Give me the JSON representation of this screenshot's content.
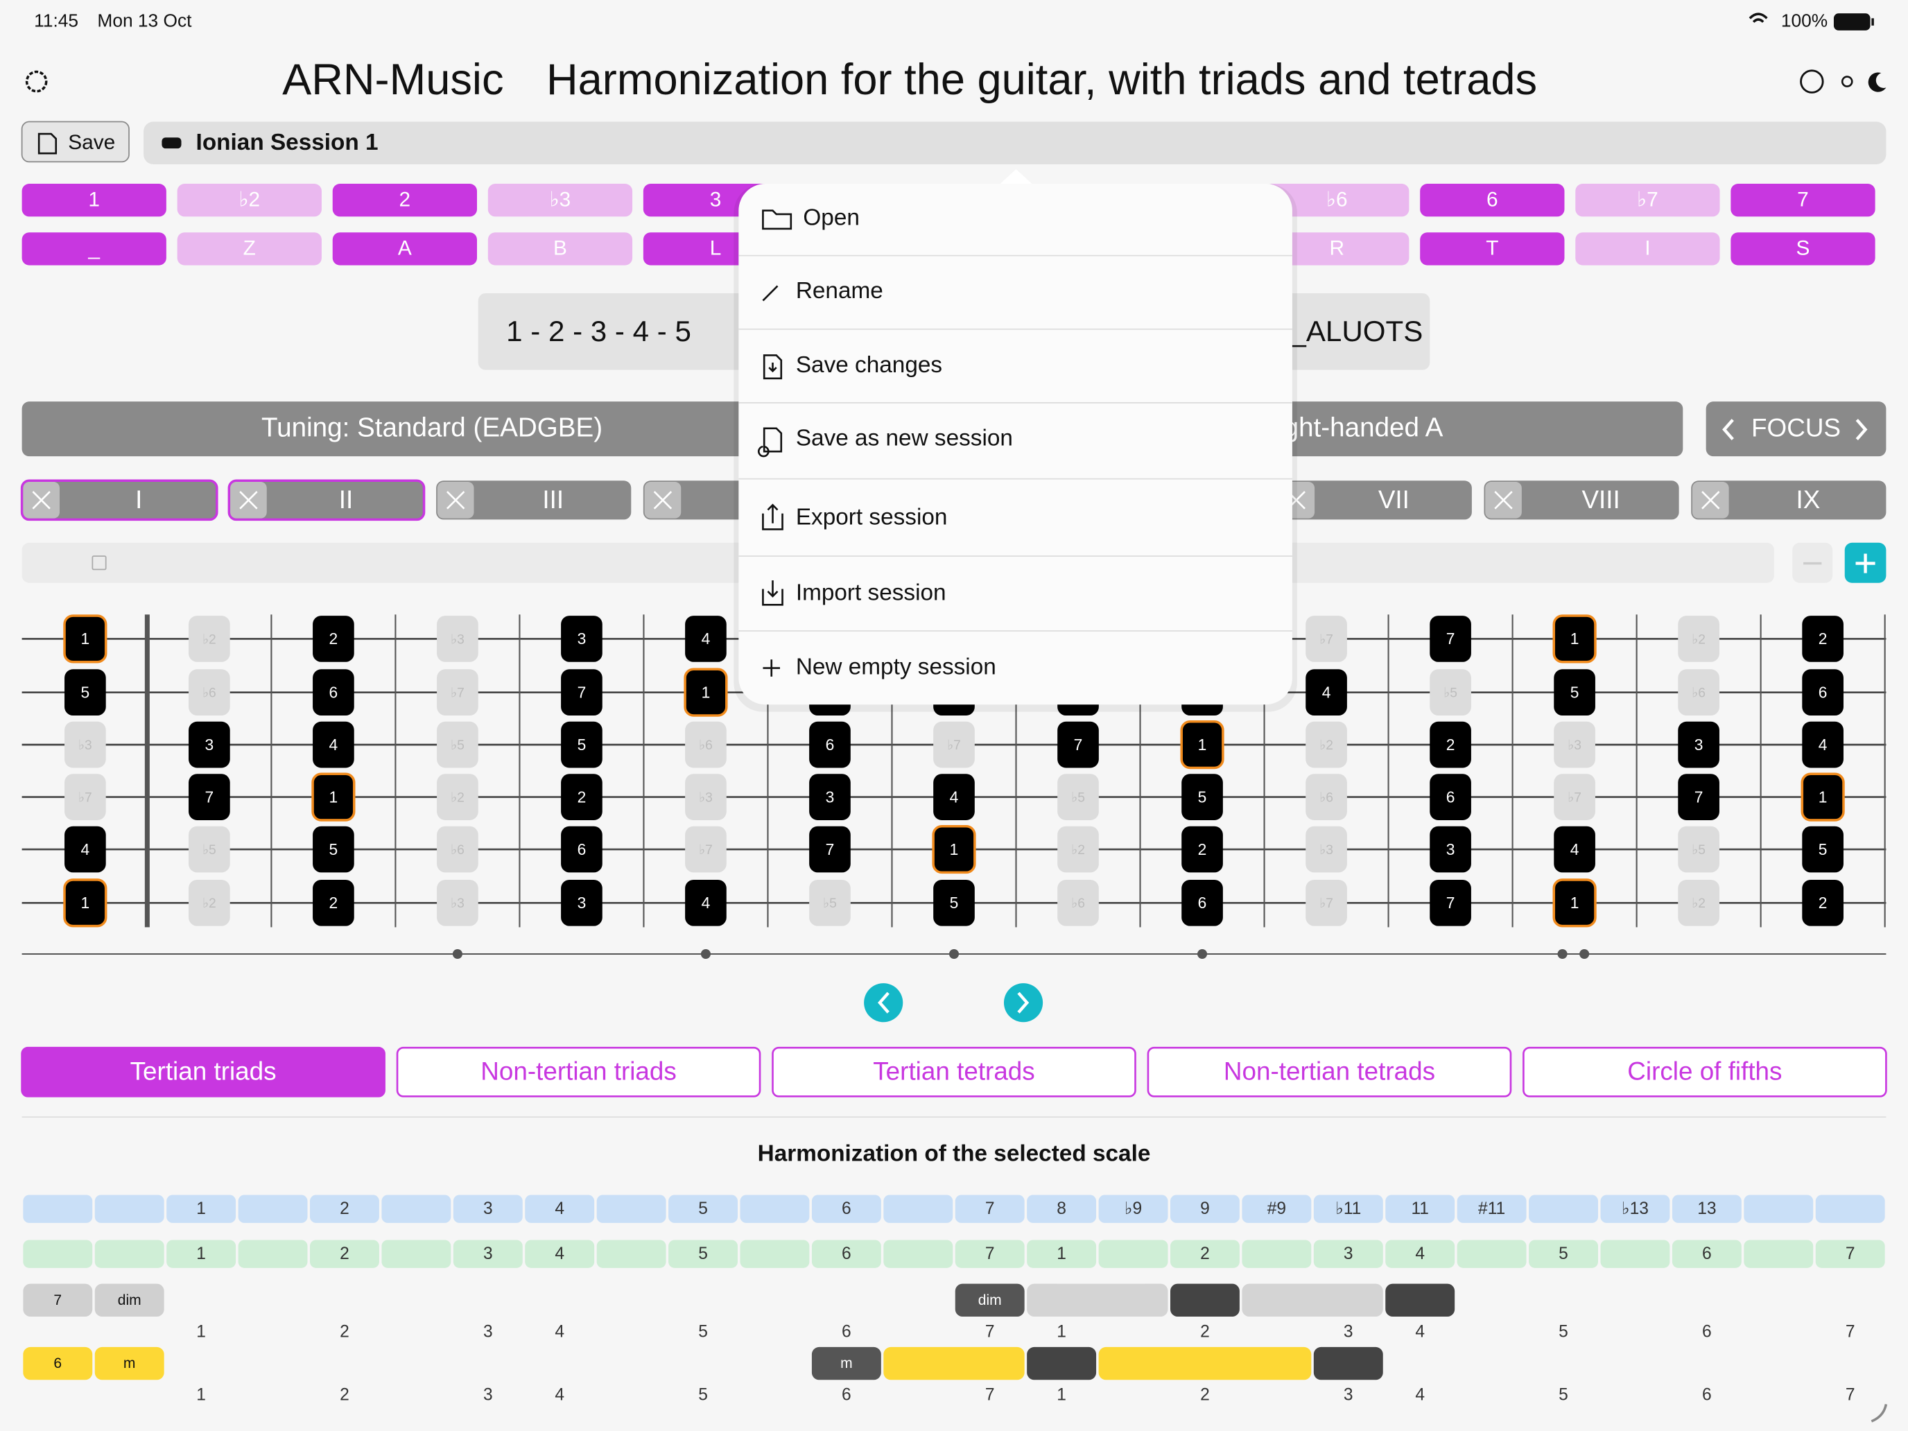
{
  "status": {
    "time": "11:45",
    "date": "Mon 13 Oct",
    "battery": "100%"
  },
  "header": {
    "app": "ARN-Music",
    "title": "Harmonization for the guitar, with triads and tetrads"
  },
  "toolbar": {
    "save": "Save",
    "session": "Ionian Session 1"
  },
  "degrees": {
    "names": [
      "1",
      "♭2",
      "2",
      "♭3",
      "3",
      null,
      null,
      null,
      "♭6",
      "6",
      "♭7",
      "7"
    ],
    "letters": [
      "_",
      "Z",
      "A",
      "B",
      "L",
      null,
      null,
      null,
      "R",
      "T",
      "I",
      "S"
    ]
  },
  "formula": {
    "degrees": "1 - 2 - 3 - 4 - 5",
    "letters": "_ALUOTS"
  },
  "tuning": {
    "label": "Tuning: Standard (EADGBE)",
    "hand": "ght-handed A",
    "focus": "FOCUS"
  },
  "positions": [
    "I",
    "II",
    "III",
    null,
    null,
    null,
    "VII",
    "VIII",
    "IX"
  ],
  "menu": {
    "items": [
      "Open",
      "Rename",
      "Save changes",
      "Save as new session",
      "Export session",
      "Import session",
      "New empty session"
    ]
  },
  "fretboard": {
    "strings": [
      [
        "1",
        "♭2",
        "2",
        "♭3",
        "3",
        "4",
        null,
        null,
        null,
        null,
        "♭7",
        "7",
        "1",
        "♭2",
        "2"
      ],
      [
        "5",
        "♭6",
        "6",
        "♭7",
        "7",
        "1",
        null,
        null,
        null,
        null,
        "4",
        "♭5",
        "5",
        "♭6",
        "6"
      ],
      [
        "♭3",
        "3",
        "4",
        "♭5",
        "5",
        "♭6",
        "6",
        "♭7",
        "7",
        "1",
        "♭2",
        "2",
        "♭3",
        "3",
        "4"
      ],
      [
        "♭7",
        "7",
        "1",
        "♭2",
        "2",
        "♭3",
        "3",
        "4",
        "♭5",
        "5",
        "♭6",
        "6",
        "♭7",
        "7",
        "1"
      ],
      [
        "4",
        "♭5",
        "5",
        "♭6",
        "6",
        "♭7",
        "7",
        "1",
        "♭2",
        "2",
        "♭3",
        "3",
        "4",
        "♭5",
        "5"
      ],
      [
        "1",
        "♭2",
        "2",
        "♭3",
        "3",
        "4",
        "♭5",
        "5",
        "♭6",
        "6",
        "♭7",
        "7",
        "1",
        "♭2",
        "2"
      ]
    ]
  },
  "tabs": [
    "Tertian triads",
    "Non-tertian triads",
    "Tertian tetrads",
    "Non-tertian tetrads",
    "Circle of fifths"
  ],
  "harmonization": {
    "title": "Harmonization of the selected scale",
    "intervals": [
      null,
      null,
      "1",
      null,
      "2",
      null,
      "3",
      "4",
      null,
      "5",
      null,
      "6",
      null,
      "7",
      "8",
      "♭9",
      "9",
      "#9",
      "♭11",
      "11",
      "#11",
      null,
      "♭13",
      "13",
      null,
      null
    ],
    "degrees": [
      null,
      null,
      "1",
      null,
      "2",
      null,
      "3",
      "4",
      null,
      "5",
      null,
      "6",
      null,
      "7",
      "1",
      null,
      "2",
      null,
      "3",
      "4",
      null,
      "5",
      null,
      "6",
      null,
      "7"
    ],
    "rows": [
      {
        "degree": "7",
        "quality": "dim",
        "chord": "dim",
        "numbers": [
          null,
          null,
          "1",
          null,
          "2",
          null,
          "3",
          "4",
          null,
          "5",
          null,
          "6",
          null,
          "7",
          "1",
          null,
          "2",
          null,
          "3",
          "4",
          null,
          "5",
          null,
          "6",
          null,
          "7"
        ]
      },
      {
        "degree": "6",
        "quality": "m",
        "chord": "m",
        "numbers": [
          null,
          null,
          "1",
          null,
          "2",
          null,
          "3",
          "4",
          null,
          "5",
          null,
          "6",
          null,
          "7",
          "1",
          null,
          "2",
          null,
          "3",
          "4",
          null,
          "5",
          null,
          "6",
          null,
          "7"
        ]
      }
    ]
  }
}
